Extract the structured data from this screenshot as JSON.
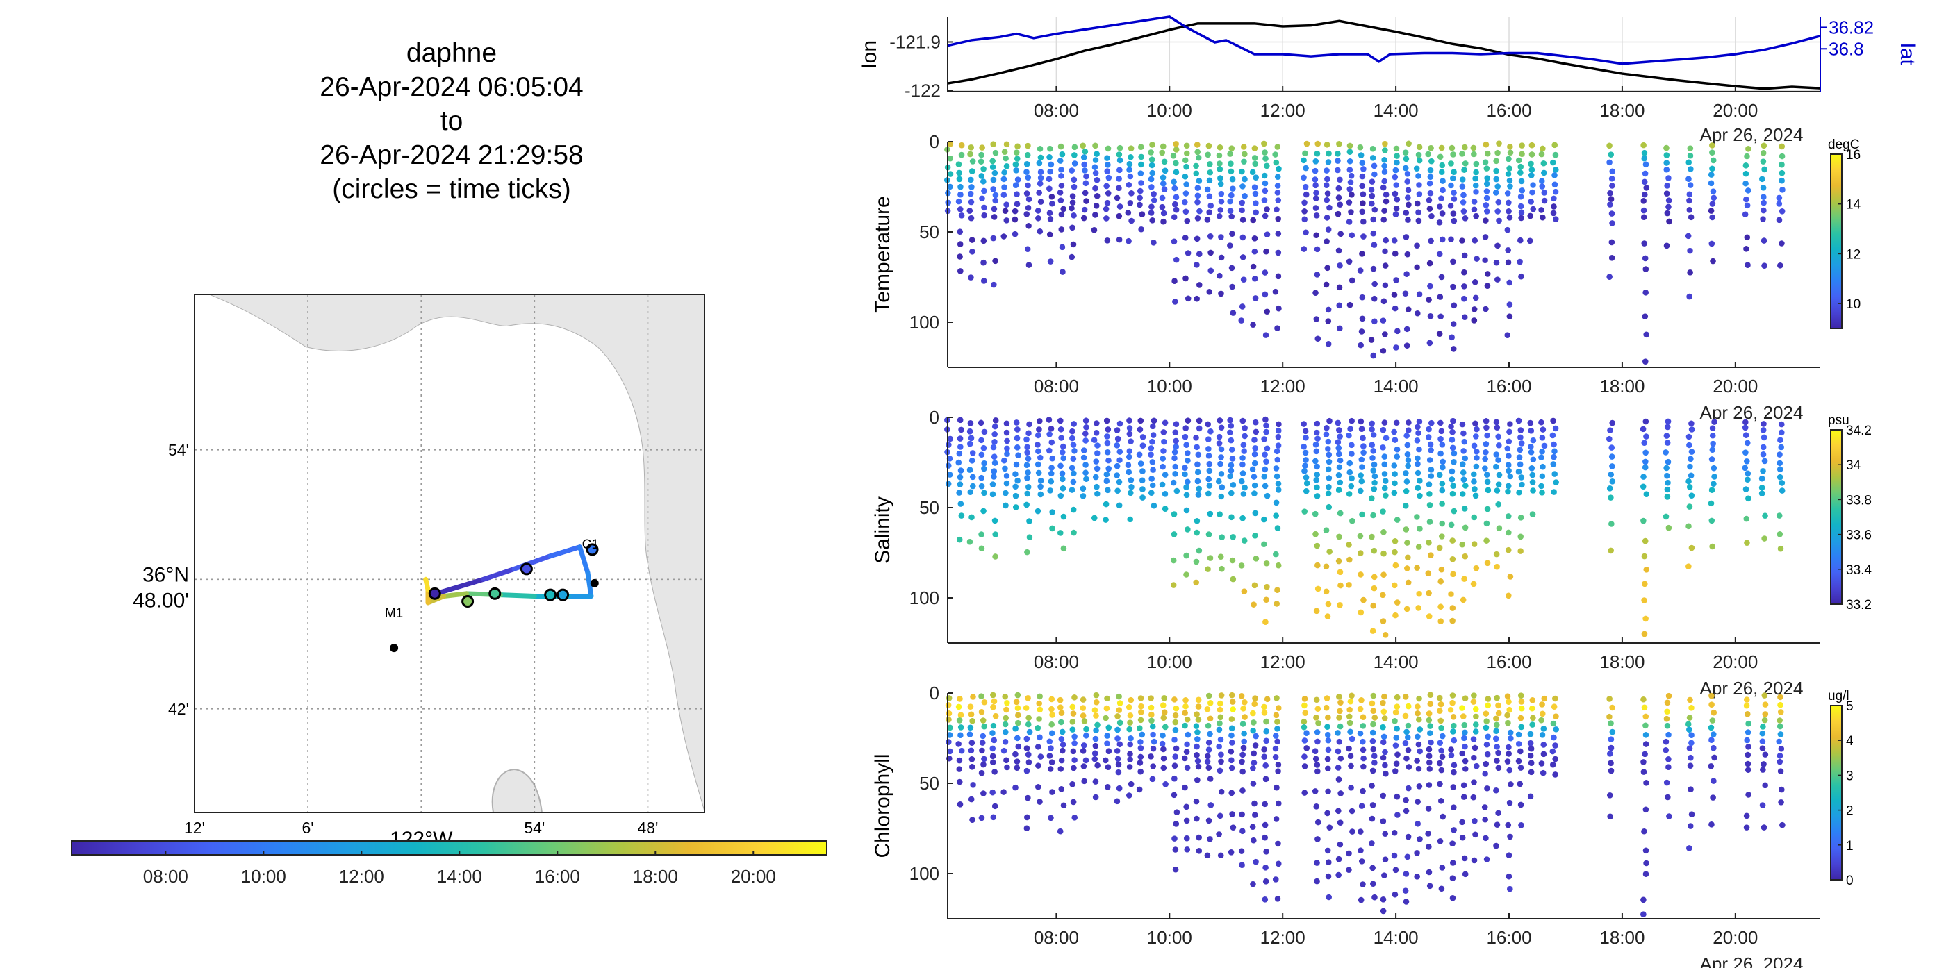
{
  "header": {
    "vehicle": "daphne",
    "start": "26-Apr-2024 06:05:04",
    "to": "to",
    "end": "26-Apr-2024 21:29:58",
    "note": "(circles = time ticks)"
  },
  "colors": {
    "lon_line": "#000000",
    "lat_line": "#0000cc",
    "land": "#e6e6e6",
    "colormap": [
      "#3e26a8",
      "#4743d5",
      "#4362f5",
      "#2d80f5",
      "#1e9de3",
      "#13b3c6",
      "#2cc2a4",
      "#6bca76",
      "#aec543",
      "#e9ba30",
      "#fbd234",
      "#f9fb15"
    ]
  },
  "chart_data": [
    {
      "type": "map",
      "name": "track-map",
      "lon_ticks": [
        {
          "value": -122.2,
          "label": "12'"
        },
        {
          "value": -122.1,
          "label": "6'"
        },
        {
          "value": -121.9,
          "label": "54'"
        },
        {
          "value": -121.8,
          "label": "48'"
        }
      ],
      "lon_center_label": "122°W",
      "lat_ticks": [
        {
          "value": 36.9,
          "label": "54'"
        },
        {
          "value": 36.7,
          "label": "42'"
        }
      ],
      "lat_center_label": [
        "36°N",
        "48.00'"
      ],
      "xlim": [
        -122.2,
        -121.75
      ],
      "ylim": [
        36.62,
        37.02
      ],
      "stations": [
        {
          "name": "M1",
          "lon": -122.024,
          "lat": 36.747
        },
        {
          "name": "C1",
          "lon": -121.847,
          "lat": 36.797
        }
      ],
      "track": [
        {
          "lon": -121.983,
          "lat": 36.79,
          "t": 6.08
        },
        {
          "lon": -121.945,
          "lat": 36.8,
          "t": 7.0
        },
        {
          "lon": -121.918,
          "lat": 36.808,
          "t": 8.0
        },
        {
          "lon": -121.886,
          "lat": 36.818,
          "t": 9.0
        },
        {
          "lon": -121.86,
          "lat": 36.825,
          "t": 9.9
        },
        {
          "lon": -121.853,
          "lat": 36.805,
          "t": 10.5
        },
        {
          "lon": -121.85,
          "lat": 36.787,
          "t": 11.0
        },
        {
          "lon": -121.87,
          "lat": 36.787,
          "t": 12.0
        },
        {
          "lon": -121.9,
          "lat": 36.787,
          "t": 13.5
        },
        {
          "lon": -121.93,
          "lat": 36.788,
          "t": 15.0
        },
        {
          "lon": -121.96,
          "lat": 36.789,
          "t": 16.5
        },
        {
          "lon": -121.98,
          "lat": 36.787,
          "t": 17.5
        },
        {
          "lon": -121.994,
          "lat": 36.782,
          "t": 18.5
        },
        {
          "lon": -121.994,
          "lat": 36.792,
          "t": 19.5
        },
        {
          "lon": -121.996,
          "lat": 36.8,
          "t": 21.5
        }
      ],
      "time_ticks": [
        {
          "lon": -121.849,
          "lat": 36.823
        },
        {
          "lon": -121.907,
          "lat": 36.808
        },
        {
          "lon": -121.935,
          "lat": 36.789
        },
        {
          "lon": -121.959,
          "lat": 36.783
        },
        {
          "lon": -121.988,
          "lat": 36.789
        },
        {
          "lon": -121.875,
          "lat": 36.788
        },
        {
          "lon": -121.886,
          "lat": 36.788
        }
      ],
      "colorbar": {
        "range_hours": [
          6.08,
          21.5
        ],
        "ticks": [
          {
            "v": 8,
            "label": "08:00"
          },
          {
            "v": 10,
            "label": "10:00"
          },
          {
            "v": 12,
            "label": "12:00"
          },
          {
            "v": 14,
            "label": "14:00"
          },
          {
            "v": 16,
            "label": "16:00"
          },
          {
            "v": 18,
            "label": "18:00"
          },
          {
            "v": 20,
            "label": "20:00"
          }
        ]
      }
    },
    {
      "type": "line",
      "name": "position-timeseries",
      "xlim_hours": [
        6.08,
        21.5
      ],
      "x_ticks": [
        {
          "v": 8,
          "label": "08:00"
        },
        {
          "v": 10,
          "label": "10:00"
        },
        {
          "v": 12,
          "label": "12:00"
        },
        {
          "v": 14,
          "label": "14:00"
        },
        {
          "v": 16,
          "label": "16:00"
        },
        {
          "v": 18,
          "label": "18:00"
        },
        {
          "v": 20,
          "label": "20:00"
        }
      ],
      "date_label": "Apr 26, 2024",
      "left_axis": {
        "label": "lon",
        "ylim": [
          -122.002,
          -121.848
        ],
        "ticks": [
          {
            "v": -121.9,
            "label": "-121.9"
          },
          {
            "v": -122.0,
            "label": "-122"
          }
        ]
      },
      "right_axis": {
        "label": "lat",
        "ylim": [
          36.76,
          36.83
        ],
        "ticks": [
          {
            "v": 36.82,
            "label": "36.82"
          },
          {
            "v": 36.8,
            "label": "36.8"
          }
        ]
      },
      "series": [
        {
          "axis": "left",
          "x": [
            6.08,
            6.5,
            7.0,
            7.5,
            8.0,
            8.5,
            9.0,
            9.5,
            10.0,
            10.5,
            11.0,
            11.5,
            12.0,
            12.5,
            13.0,
            13.5,
            14.0,
            14.5,
            15.0,
            15.5,
            16.0,
            16.5,
            17.0,
            17.5,
            18.0,
            18.5,
            19.0,
            19.5,
            20.0,
            20.5,
            21.0,
            21.5
          ],
          "values": [
            -121.985,
            -121.977,
            -121.964,
            -121.95,
            -121.935,
            -121.918,
            -121.905,
            -121.89,
            -121.875,
            -121.862,
            -121.862,
            -121.862,
            -121.868,
            -121.866,
            -121.857,
            -121.868,
            -121.879,
            -121.891,
            -121.904,
            -121.913,
            -121.926,
            -121.934,
            -121.945,
            -121.955,
            -121.965,
            -121.972,
            -121.979,
            -121.985,
            -121.991,
            -121.996,
            -121.992,
            -121.995
          ]
        },
        {
          "axis": "right",
          "x": [
            6.08,
            6.5,
            7.0,
            7.3,
            7.6,
            8.0,
            8.5,
            9.0,
            9.5,
            10.0,
            10.3,
            10.8,
            11.0,
            11.5,
            12.0,
            12.5,
            13.0,
            13.5,
            13.7,
            13.9,
            14.5,
            15.0,
            15.5,
            16.0,
            16.5,
            17.0,
            17.5,
            18.0,
            18.5,
            19.0,
            19.5,
            20.0,
            20.5,
            21.0,
            21.5
          ],
          "values": [
            36.803,
            36.808,
            36.811,
            36.814,
            36.81,
            36.814,
            36.818,
            36.822,
            36.826,
            36.83,
            36.82,
            36.806,
            36.808,
            36.795,
            36.795,
            36.793,
            36.795,
            36.795,
            36.788,
            36.795,
            36.796,
            36.796,
            36.795,
            36.796,
            36.796,
            36.793,
            36.79,
            36.786,
            36.788,
            36.79,
            36.792,
            36.795,
            36.799,
            36.805,
            36.812
          ]
        }
      ]
    },
    {
      "type": "scatter",
      "name": "temperature-section",
      "ylabel": "Temperature",
      "units": "degC",
      "xlim_hours": [
        6.08,
        21.5
      ],
      "ylim": [
        0,
        125
      ],
      "y_ticks": [
        0,
        50,
        100
      ],
      "x_ticks": [
        {
          "v": 8,
          "label": "08:00"
        },
        {
          "v": 10,
          "label": "10:00"
        },
        {
          "v": 12,
          "label": "12:00"
        },
        {
          "v": 14,
          "label": "14:00"
        },
        {
          "v": 16,
          "label": "16:00"
        },
        {
          "v": 18,
          "label": "18:00"
        },
        {
          "v": 20,
          "label": "20:00"
        }
      ],
      "date_label": "Apr 26, 2024",
      "colorbar": {
        "clim": [
          9,
          16
        ],
        "ticks": [
          16,
          14,
          12,
          10
        ]
      },
      "profile_times": [
        6.1,
        6.3,
        6.5,
        6.7,
        6.9,
        7.1,
        7.3,
        7.5,
        7.7,
        7.9,
        8.1,
        8.3,
        8.5,
        8.7,
        8.9,
        9.1,
        9.3,
        9.5,
        9.7,
        9.9,
        10.1,
        10.3,
        10.5,
        10.7,
        10.9,
        11.1,
        11.3,
        11.5,
        11.7,
        11.9,
        12.4,
        12.6,
        12.8,
        13.0,
        13.2,
        13.4,
        13.6,
        13.8,
        14.0,
        14.2,
        14.4,
        14.6,
        14.8,
        15.0,
        15.2,
        15.4,
        15.6,
        15.8,
        16.0,
        16.2,
        16.4,
        16.6,
        16.8,
        17.8,
        18.4,
        18.8,
        19.2,
        19.6,
        20.2,
        20.5,
        20.8
      ],
      "profile_max_depth": [
        40,
        75,
        76,
        78,
        80,
        55,
        60,
        75,
        62,
        70,
        78,
        72,
        55,
        60,
        58,
        62,
        58,
        55,
        60,
        58,
        100,
        95,
        92,
        90,
        94,
        97,
        100,
        110,
        120,
        115,
        60,
        115,
        118,
        110,
        100,
        118,
        120,
        122,
        120,
        118,
        108,
        112,
        116,
        118,
        105,
        100,
        95,
        85,
        110,
        75,
        60,
        50,
        48,
        82,
        125,
        70,
        95,
        75,
        75,
        75,
        75
      ],
      "surface_temp": 14.5,
      "deep_temp": 9.3
    },
    {
      "type": "scatter",
      "name": "salinity-section",
      "ylabel": "Salinity",
      "units": "psu",
      "xlim_hours": [
        6.08,
        21.5
      ],
      "ylim": [
        0,
        125
      ],
      "y_ticks": [
        0,
        50,
        100
      ],
      "x_ticks": [
        {
          "v": 8,
          "label": "08:00"
        },
        {
          "v": 10,
          "label": "10:00"
        },
        {
          "v": 12,
          "label": "12:00"
        },
        {
          "v": 14,
          "label": "14:00"
        },
        {
          "v": 16,
          "label": "16:00"
        },
        {
          "v": 18,
          "label": "18:00"
        },
        {
          "v": 20,
          "label": "20:00"
        }
      ],
      "date_label": "Apr 26, 2024",
      "colorbar": {
        "clim": [
          33.2,
          34.2
        ],
        "ticks": [
          34.2,
          34.0,
          33.8,
          33.6,
          33.4,
          33.2
        ],
        "tick_labels": [
          "34.2",
          "34",
          "33.8",
          "33.6",
          "33.4",
          "33.2"
        ]
      },
      "surface_sal": 33.25,
      "deep_sal": 34.05
    },
    {
      "type": "scatter",
      "name": "chlorophyll-section",
      "ylabel": "Chlorophyll",
      "units": "ug/l",
      "xlim_hours": [
        6.08,
        21.5
      ],
      "ylim": [
        0,
        125
      ],
      "y_ticks": [
        0,
        50,
        100
      ],
      "x_ticks": [
        {
          "v": 8,
          "label": "08:00"
        },
        {
          "v": 10,
          "label": "10:00"
        },
        {
          "v": 12,
          "label": "12:00"
        },
        {
          "v": 14,
          "label": "14:00"
        },
        {
          "v": 16,
          "label": "16:00"
        },
        {
          "v": 18,
          "label": "18:00"
        },
        {
          "v": 20,
          "label": "20:00"
        }
      ],
      "date_label": "Apr 26, 2024",
      "colorbar": {
        "clim": [
          0,
          5
        ],
        "ticks": [
          5,
          4,
          3,
          2,
          1,
          0
        ]
      },
      "max_chl": 4.6,
      "max_chl_depth": 8
    }
  ]
}
